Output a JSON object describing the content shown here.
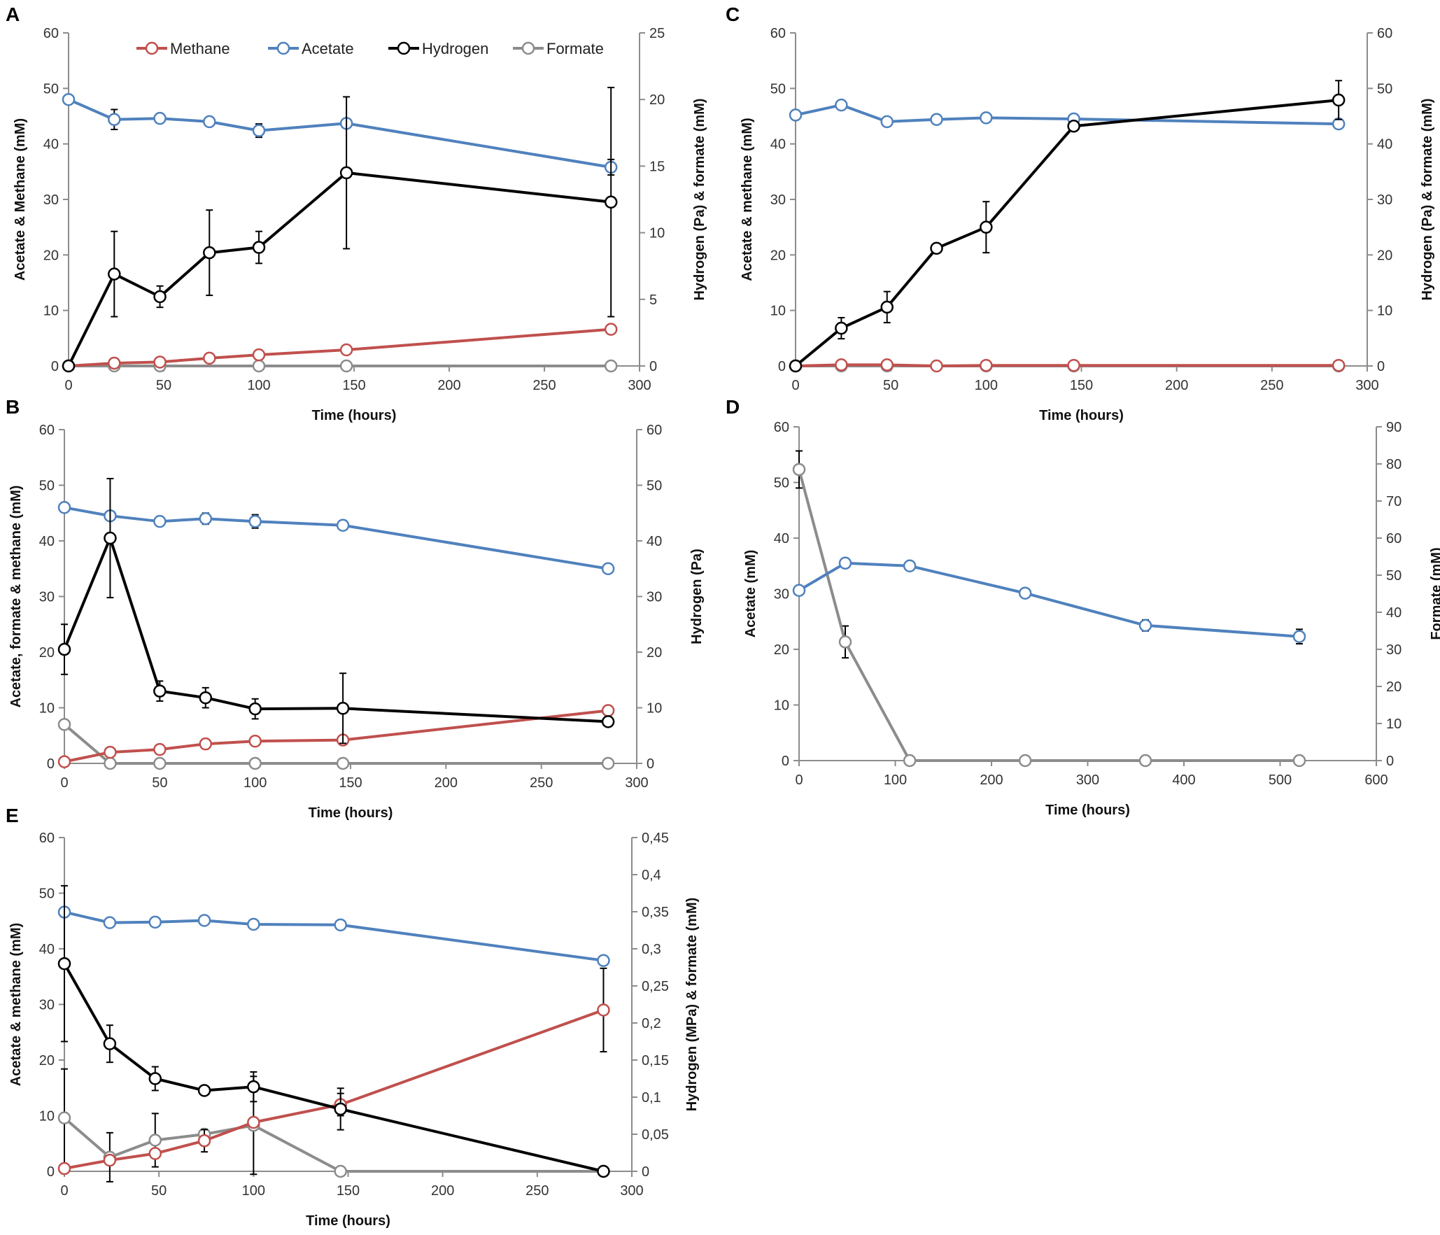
{
  "colors": {
    "Methane": "#c0504d",
    "Acetate": "#4f81bd",
    "Hydrogen": "#000000",
    "Formate": "#8c8c8c",
    "axis": "#8c8c8c"
  },
  "legend": [
    "Methane",
    "Acetate",
    "Hydrogen",
    "Formate"
  ],
  "chart_data": [
    {
      "panel": "A",
      "type": "line",
      "title": "",
      "xlabel": "Time (hours)",
      "ylabel": "Acetate & Methane  (mM)",
      "y2label": "Hydrogen (Pa) & formate (mM)",
      "xlim": [
        0,
        300
      ],
      "xticks": [
        0,
        50,
        100,
        150,
        200,
        250,
        300
      ],
      "ylim": [
        0,
        60
      ],
      "yticks": [
        0,
        10,
        20,
        30,
        40,
        50,
        60
      ],
      "y2lim": [
        0,
        25
      ],
      "y2ticks": [
        0,
        5,
        10,
        15,
        20,
        25
      ],
      "show_legend": true,
      "series": [
        {
          "name": "Methane",
          "axis": "left",
          "x": [
            0,
            24,
            48,
            74,
            100,
            146,
            285
          ],
          "y": [
            0,
            0.5,
            0.7,
            1.4,
            2.0,
            2.9,
            6.6
          ],
          "err": [
            0,
            0,
            0,
            0,
            0,
            0,
            0
          ]
        },
        {
          "name": "Acetate",
          "axis": "left",
          "x": [
            0,
            24,
            48,
            74,
            100,
            146,
            285
          ],
          "y": [
            48.0,
            44.4,
            44.6,
            44.0,
            42.4,
            43.7,
            35.8
          ],
          "err": [
            0,
            1.8,
            0,
            0,
            1.2,
            0,
            1.4
          ]
        },
        {
          "name": "Hydrogen",
          "axis": "right",
          "x": [
            0,
            24,
            48,
            74,
            100,
            146,
            285
          ],
          "y": [
            0,
            6.9,
            5.2,
            8.5,
            8.9,
            14.5,
            12.3
          ],
          "err": [
            0,
            3.2,
            0.8,
            3.2,
            1.2,
            5.7,
            8.6
          ]
        },
        {
          "name": "Formate",
          "axis": "right",
          "x": [
            0,
            24,
            48,
            100,
            146,
            285
          ],
          "y": [
            0,
            0,
            0,
            0,
            0,
            0
          ],
          "err": [
            0,
            0,
            0,
            0,
            0,
            0
          ]
        }
      ]
    },
    {
      "panel": "B",
      "type": "line",
      "title": "",
      "xlabel": "Time (hours)",
      "ylabel": "Acetate, formate & methane (mM)",
      "y2label": "Hydrogen (Pa)",
      "xlim": [
        0,
        300
      ],
      "xticks": [
        0,
        50,
        100,
        150,
        200,
        250,
        300
      ],
      "ylim": [
        0,
        60
      ],
      "yticks": [
        0,
        10,
        20,
        30,
        40,
        50,
        60
      ],
      "y2lim": [
        0,
        60
      ],
      "y2ticks": [
        0,
        10,
        20,
        30,
        40,
        50,
        60
      ],
      "show_legend": false,
      "series": [
        {
          "name": "Methane",
          "axis": "left",
          "x": [
            0,
            24,
            50,
            74,
            100,
            146,
            285
          ],
          "y": [
            0.3,
            2.0,
            2.5,
            3.5,
            4.0,
            4.2,
            9.5
          ],
          "err": [
            0,
            0,
            0,
            0,
            0,
            0,
            0
          ]
        },
        {
          "name": "Acetate",
          "axis": "left",
          "x": [
            0,
            24,
            50,
            74,
            100,
            146,
            285
          ],
          "y": [
            46.0,
            44.5,
            43.5,
            44.0,
            43.5,
            42.8,
            35.0
          ],
          "err": [
            0,
            0,
            0,
            1.0,
            1.2,
            0,
            0
          ]
        },
        {
          "name": "Hydrogen",
          "axis": "right",
          "x": [
            0,
            24,
            50,
            74,
            100,
            146,
            285
          ],
          "y": [
            20.5,
            40.5,
            13.0,
            11.8,
            9.8,
            9.9,
            7.5
          ],
          "err": [
            4.5,
            10.7,
            1.8,
            1.8,
            1.8,
            6.3,
            0
          ]
        },
        {
          "name": "Formate",
          "axis": "left",
          "x": [
            0,
            24,
            50,
            100,
            146,
            285
          ],
          "y": [
            7.0,
            0,
            0,
            0,
            0,
            0
          ],
          "err": [
            0,
            0,
            0,
            0,
            0,
            0
          ]
        }
      ]
    },
    {
      "panel": "C",
      "type": "line",
      "title": "",
      "xlabel": "Time (hours)",
      "ylabel": "Acetate & methane (mM)",
      "y2label": "Hydrogen (Pa) & formate (mM)",
      "xlim": [
        0,
        300
      ],
      "xticks": [
        0,
        50,
        100,
        150,
        200,
        250,
        300
      ],
      "ylim": [
        0,
        60
      ],
      "yticks": [
        0,
        10,
        20,
        30,
        40,
        50,
        60
      ],
      "y2lim": [
        0,
        60
      ],
      "y2ticks": [
        0,
        10,
        20,
        30,
        40,
        50,
        60
      ],
      "show_legend": false,
      "series": [
        {
          "name": "Methane",
          "axis": "left",
          "x": [
            0,
            24,
            48,
            74,
            100,
            146,
            285
          ],
          "y": [
            0,
            0.2,
            0.2,
            0,
            0.1,
            0.1,
            0.1
          ],
          "err": [
            0,
            0,
            0,
            0,
            0,
            0,
            0
          ]
        },
        {
          "name": "Acetate",
          "axis": "left",
          "x": [
            0,
            24,
            48,
            74,
            100,
            146,
            285
          ],
          "y": [
            45.2,
            47.0,
            44.0,
            44.4,
            44.7,
            44.5,
            43.6
          ],
          "err": [
            0,
            0,
            0,
            0,
            0,
            0,
            0
          ]
        },
        {
          "name": "Hydrogen",
          "axis": "right",
          "x": [
            0,
            24,
            48,
            74,
            100,
            146,
            285
          ],
          "y": [
            0,
            6.8,
            10.6,
            21.2,
            25.0,
            43.2,
            47.9
          ],
          "err": [
            0,
            1.9,
            2.8,
            0,
            4.6,
            0,
            3.5
          ]
        },
        {
          "name": "Formate",
          "axis": "right",
          "x": [
            0,
            24,
            48,
            100,
            146,
            285
          ],
          "y": [
            0,
            0,
            0,
            0,
            0,
            0
          ],
          "err": [
            0,
            0,
            0,
            0,
            0,
            0
          ]
        }
      ]
    },
    {
      "panel": "D",
      "type": "line",
      "title": "",
      "xlabel": "Time (hours)",
      "ylabel": "Acetate (mM)",
      "y2label": "Formate (mM)",
      "xlim": [
        0,
        600
      ],
      "xticks": [
        0,
        100,
        200,
        300,
        400,
        500,
        600
      ],
      "ylim": [
        0,
        60
      ],
      "yticks": [
        0,
        10,
        20,
        30,
        40,
        50,
        60
      ],
      "y2lim": [
        0,
        90
      ],
      "y2ticks": [
        0,
        10,
        20,
        30,
        40,
        50,
        60,
        70,
        80,
        90
      ],
      "show_legend": false,
      "series": [
        {
          "name": "Acetate",
          "axis": "left",
          "x": [
            0,
            48,
            115,
            235,
            360,
            520
          ],
          "y": [
            30.6,
            35.5,
            35.0,
            30.1,
            24.3,
            22.3
          ],
          "err": [
            0,
            0,
            0,
            0,
            1.0,
            1.3
          ]
        },
        {
          "name": "Formate",
          "axis": "right",
          "x": [
            0,
            48,
            115,
            235,
            360,
            520
          ],
          "y": [
            78.5,
            32.0,
            0,
            0,
            0,
            0
          ],
          "err": [
            5.0,
            4.3,
            0,
            0,
            0,
            0
          ]
        }
      ]
    },
    {
      "panel": "E",
      "type": "line",
      "title": "",
      "xlabel": "Time (hours)",
      "ylabel": "Acetate & methane (mM)",
      "y2label": "Hydrogen (MPa)  & formate (mM)",
      "xlim": [
        0,
        300
      ],
      "xticks": [
        0,
        50,
        100,
        150,
        200,
        250,
        300
      ],
      "ylim": [
        0,
        60
      ],
      "yticks": [
        0,
        10,
        20,
        30,
        40,
        50,
        60
      ],
      "y2lim": [
        0,
        0.45
      ],
      "y2ticks": [
        0,
        0.05,
        0.1,
        0.15,
        0.2,
        0.25,
        0.3,
        0.35,
        0.4,
        0.45
      ],
      "y2ticklabels": [
        "0",
        "0,05",
        "0,1",
        "0,15",
        "0,2",
        "0,25",
        "0,3",
        "0,35",
        "0,4",
        "0,45"
      ],
      "show_legend": false,
      "series": [
        {
          "name": "Methane",
          "axis": "left",
          "x": [
            0,
            24,
            48,
            74,
            100,
            146,
            285
          ],
          "y": [
            0.5,
            2.0,
            3.2,
            5.5,
            8.8,
            12.0,
            29.0
          ],
          "err": [
            0,
            0,
            0,
            2.0,
            0,
            2.0,
            7.5
          ]
        },
        {
          "name": "Acetate",
          "axis": "left",
          "x": [
            0,
            24,
            48,
            74,
            100,
            146,
            285
          ],
          "y": [
            46.6,
            44.7,
            44.8,
            45.1,
            44.4,
            44.3,
            37.9
          ],
          "err": [
            0,
            0,
            0,
            0,
            0,
            0,
            0
          ]
        },
        {
          "name": "Hydrogen",
          "axis": "right",
          "x": [
            0,
            24,
            48,
            74,
            100,
            146,
            285
          ],
          "y": [
            0.28,
            0.172,
            0.125,
            0.109,
            0.114,
            0.084,
            0.0
          ],
          "err": [
            0.105,
            0.025,
            0.016,
            0,
            0.02,
            0.028,
            0
          ]
        },
        {
          "name": "Formate",
          "axis": "right",
          "x": [
            0,
            24,
            48,
            74,
            100,
            146,
            285
          ],
          "y": [
            0.072,
            0.019,
            0.042,
            0.05,
            0.062,
            0.0,
            0.0
          ],
          "err": [
            0.066,
            0.033,
            0.036,
            0,
            0.066,
            0,
            0
          ]
        }
      ]
    }
  ]
}
